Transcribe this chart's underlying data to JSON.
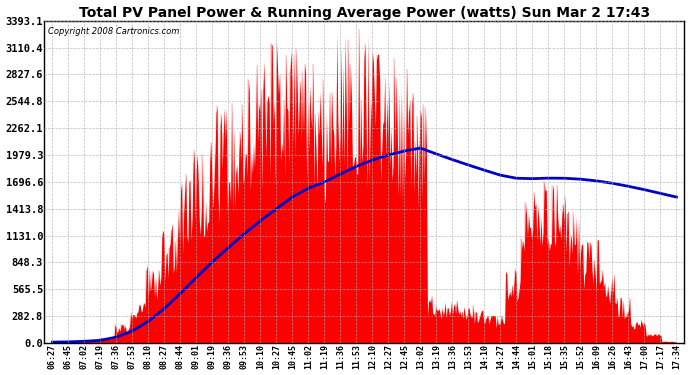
{
  "title": "Total PV Panel Power & Running Average Power (watts) Sun Mar 2 17:43",
  "copyright": "Copyright 2008 Cartronics.com",
  "background_color": "#ffffff",
  "plot_bg_color": "#ffffff",
  "grid_color": "#aaaaaa",
  "bar_color": "#ff0000",
  "line_color": "#0000cc",
  "y_ticks": [
    0.0,
    282.8,
    565.5,
    848.3,
    1131.0,
    1413.8,
    1696.6,
    1979.3,
    2262.1,
    2544.8,
    2827.6,
    3110.4,
    3393.1
  ],
  "x_labels": [
    "06:27",
    "06:45",
    "07:02",
    "07:19",
    "07:36",
    "07:53",
    "08:10",
    "08:27",
    "08:44",
    "09:01",
    "09:19",
    "09:36",
    "09:53",
    "10:10",
    "10:27",
    "10:45",
    "11:02",
    "11:19",
    "11:36",
    "11:53",
    "12:10",
    "12:27",
    "12:45",
    "13:02",
    "13:19",
    "13:36",
    "13:53",
    "14:10",
    "14:27",
    "14:44",
    "15:01",
    "15:18",
    "15:35",
    "15:52",
    "16:09",
    "16:26",
    "16:43",
    "17:00",
    "17:17",
    "17:34"
  ],
  "ymax": 3393.1,
  "ymin": 0.0,
  "bar_heights": [
    10,
    15,
    30,
    60,
    200,
    450,
    850,
    1300,
    1800,
    2200,
    2500,
    2650,
    2900,
    3050,
    3200,
    3393,
    3100,
    2800,
    3300,
    3393,
    3250,
    3100,
    2950,
    2750,
    500,
    450,
    400,
    350,
    300,
    800,
    1600,
    1900,
    1700,
    1400,
    1100,
    800,
    500,
    300,
    100,
    20
  ]
}
